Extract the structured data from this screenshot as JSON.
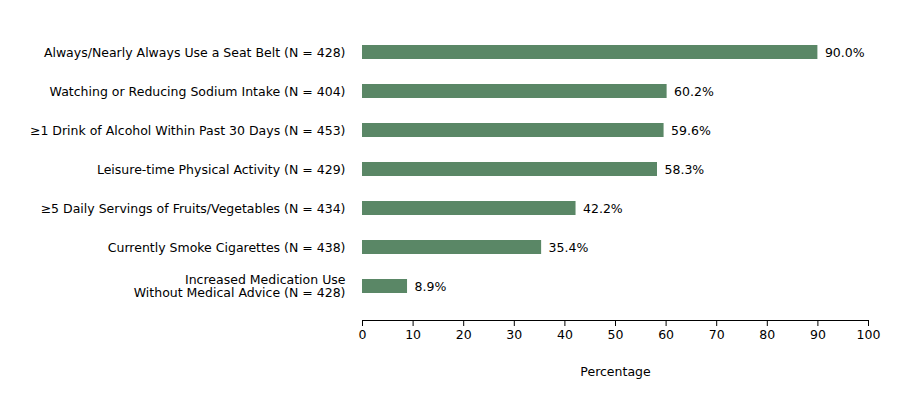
{
  "chart_data": {
    "type": "bar",
    "orientation": "horizontal",
    "categories": [
      "Always/Nearly Always Use a Seat Belt (N = 428)",
      "Watching or Reducing Sodium Intake (N = 404)",
      "≥1 Drink of Alcohol Within Past 30 Days (N = 453)",
      "Leisure-time Physical Activity (N = 429)",
      "≥5 Daily Servings of Fruits/Vegetables (N = 434)",
      "Currently Smoke Cigarettes (N = 438)",
      "Increased Medication Use\nWithout Medical Advice (N = 428)"
    ],
    "values": [
      90.0,
      60.2,
      59.6,
      58.3,
      42.2,
      35.4,
      8.9
    ],
    "value_labels": [
      "90.0%",
      "60.2%",
      "59.6%",
      "58.3%",
      "42.2%",
      "35.4%",
      "8.9%"
    ],
    "data_labels": true,
    "color": "#5a8766",
    "x_label": "Percentage",
    "xlim": [
      0,
      100
    ],
    "xticks": [
      0,
      10,
      20,
      30,
      40,
      50,
      60,
      70,
      80,
      90,
      100
    ],
    "grid": false
  }
}
